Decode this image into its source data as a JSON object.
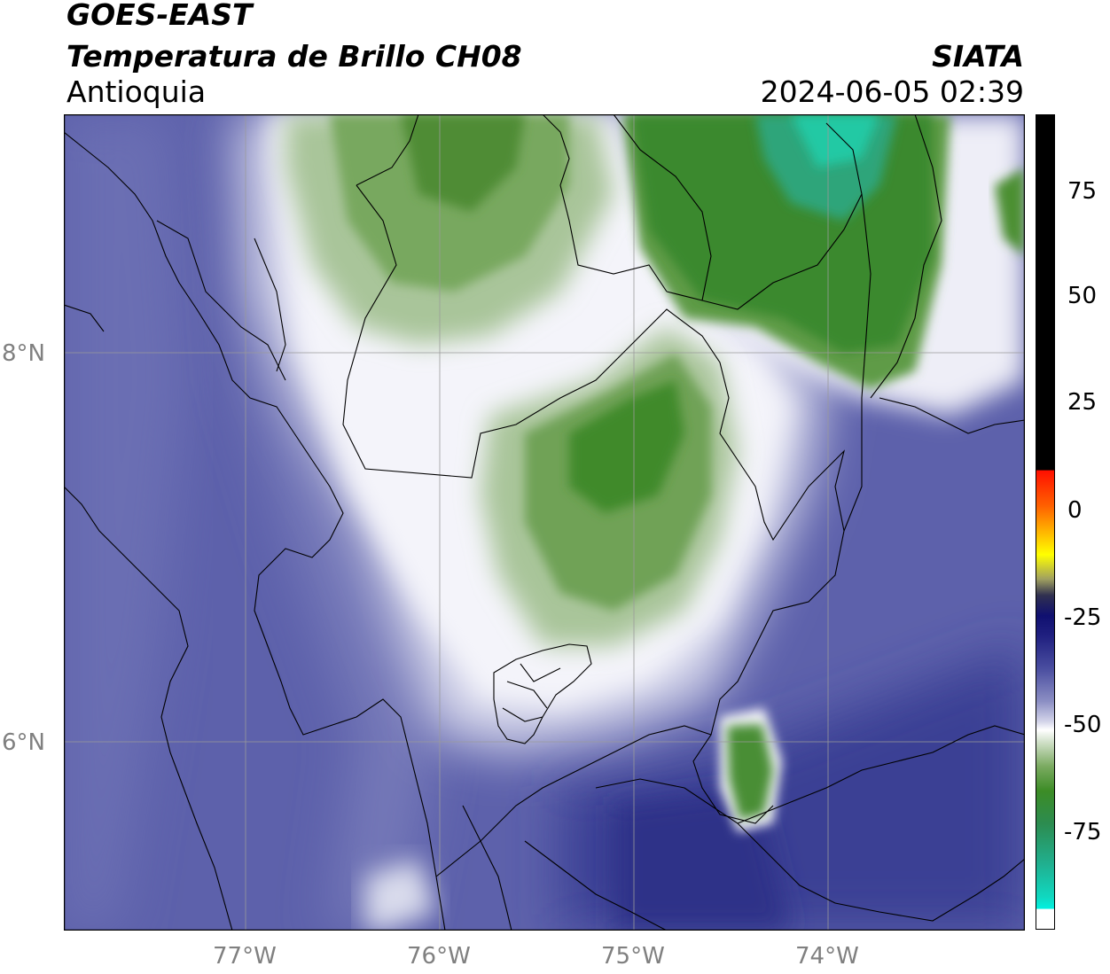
{
  "header": {
    "line1": "GOES-EAST",
    "line2": "Temperatura de Brillo CH08",
    "line3": "Antioquia",
    "org": "SIATA",
    "datetime": "2024-06-05 02:39"
  },
  "map": {
    "lat_labels": [
      "8°N",
      "6°N"
    ],
    "lon_labels": [
      "77°W",
      "76°W",
      "75°W",
      "74°W"
    ],
    "lon_range": [
      -77.94,
      -73.0
    ],
    "lat_range": [
      5.0,
      9.2
    ]
  },
  "colorbar": {
    "ticks": [
      "75",
      "50",
      "25",
      "0",
      "-25",
      "-50",
      "-75"
    ],
    "range": [
      -95,
      92
    ],
    "colors": {
      "warm_black": "#000000",
      "red": "#ff2000",
      "orange": "#ff9a00",
      "yellow": "#ffff00",
      "navy": "#101070",
      "blue_mid": "#4a4ea0",
      "white": "#ffffff",
      "green": "#3c8c26",
      "teal": "#20c8a0",
      "cyan": "#00f0e0"
    }
  }
}
